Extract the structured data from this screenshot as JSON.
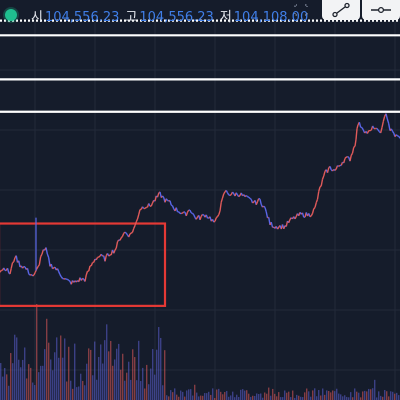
{
  "header": {
    "status_color": "#1fbf8f",
    "ohlc": [
      {
        "label": "시",
        "value": "104,556.23"
      },
      {
        "label": "고",
        "value": "104,556.23"
      },
      {
        "label": "저",
        "value": "104,108.00"
      }
    ]
  },
  "toolbar": {
    "tools": [
      {
        "name": "crosshair-icon",
        "active": false
      },
      {
        "name": "trend-line-icon",
        "active": true
      },
      {
        "name": "horizontal-line-icon",
        "active": true
      }
    ]
  },
  "chart_data": {
    "type": "line",
    "title": "",
    "xlabel": "",
    "ylabel": "",
    "grid": true,
    "price_series": [
      {
        "x": 0,
        "y": 0.12
      },
      {
        "x": 5,
        "y": 0.13
      },
      {
        "x": 10,
        "y": 0.11
      },
      {
        "x": 15,
        "y": 0.17
      },
      {
        "x": 20,
        "y": 0.14
      },
      {
        "x": 25,
        "y": 0.13
      },
      {
        "x": 30,
        "y": 0.11
      },
      {
        "x": 34,
        "y": 0.1
      },
      {
        "x": 38,
        "y": 0.13
      },
      {
        "x": 42,
        "y": 0.18
      },
      {
        "x": 46,
        "y": 0.19
      },
      {
        "x": 50,
        "y": 0.14
      },
      {
        "x": 55,
        "y": 0.13
      },
      {
        "x": 60,
        "y": 0.11
      },
      {
        "x": 65,
        "y": 0.09
      },
      {
        "x": 70,
        "y": 0.08
      },
      {
        "x": 75,
        "y": 0.08
      },
      {
        "x": 80,
        "y": 0.09
      },
      {
        "x": 85,
        "y": 0.09
      },
      {
        "x": 90,
        "y": 0.13
      },
      {
        "x": 95,
        "y": 0.16
      },
      {
        "x": 100,
        "y": 0.17
      },
      {
        "x": 105,
        "y": 0.16
      },
      {
        "x": 110,
        "y": 0.18
      },
      {
        "x": 115,
        "y": 0.19
      },
      {
        "x": 120,
        "y": 0.23
      },
      {
        "x": 125,
        "y": 0.25
      },
      {
        "x": 130,
        "y": 0.24
      },
      {
        "x": 135,
        "y": 0.27
      },
      {
        "x": 140,
        "y": 0.33
      },
      {
        "x": 145,
        "y": 0.34
      },
      {
        "x": 150,
        "y": 0.34
      },
      {
        "x": 155,
        "y": 0.36
      },
      {
        "x": 160,
        "y": 0.38
      },
      {
        "x": 165,
        "y": 0.36
      },
      {
        "x": 170,
        "y": 0.35
      },
      {
        "x": 175,
        "y": 0.33
      },
      {
        "x": 180,
        "y": 0.32
      },
      {
        "x": 185,
        "y": 0.31
      },
      {
        "x": 190,
        "y": 0.33
      },
      {
        "x": 195,
        "y": 0.3
      },
      {
        "x": 200,
        "y": 0.3
      },
      {
        "x": 205,
        "y": 0.31
      },
      {
        "x": 210,
        "y": 0.3
      },
      {
        "x": 215,
        "y": 0.28
      },
      {
        "x": 220,
        "y": 0.33
      },
      {
        "x": 225,
        "y": 0.39
      },
      {
        "x": 230,
        "y": 0.38
      },
      {
        "x": 235,
        "y": 0.38
      },
      {
        "x": 240,
        "y": 0.38
      },
      {
        "x": 245,
        "y": 0.37
      },
      {
        "x": 250,
        "y": 0.36
      },
      {
        "x": 255,
        "y": 0.35
      },
      {
        "x": 260,
        "y": 0.36
      },
      {
        "x": 265,
        "y": 0.33
      },
      {
        "x": 270,
        "y": 0.28
      },
      {
        "x": 275,
        "y": 0.27
      },
      {
        "x": 280,
        "y": 0.27
      },
      {
        "x": 285,
        "y": 0.27
      },
      {
        "x": 290,
        "y": 0.29
      },
      {
        "x": 295,
        "y": 0.3
      },
      {
        "x": 300,
        "y": 0.31
      },
      {
        "x": 305,
        "y": 0.31
      },
      {
        "x": 310,
        "y": 0.31
      },
      {
        "x": 315,
        "y": 0.33
      },
      {
        "x": 320,
        "y": 0.4
      },
      {
        "x": 325,
        "y": 0.45
      },
      {
        "x": 330,
        "y": 0.47
      },
      {
        "x": 335,
        "y": 0.46
      },
      {
        "x": 340,
        "y": 0.48
      },
      {
        "x": 345,
        "y": 0.5
      },
      {
        "x": 350,
        "y": 0.5
      },
      {
        "x": 355,
        "y": 0.55
      },
      {
        "x": 358,
        "y": 0.62
      },
      {
        "x": 362,
        "y": 0.61
      },
      {
        "x": 366,
        "y": 0.59
      },
      {
        "x": 370,
        "y": 0.59
      },
      {
        "x": 374,
        "y": 0.61
      },
      {
        "x": 378,
        "y": 0.59
      },
      {
        "x": 382,
        "y": 0.6
      },
      {
        "x": 386,
        "y": 0.66
      },
      {
        "x": 390,
        "y": 0.6
      },
      {
        "x": 395,
        "y": 0.58
      },
      {
        "x": 400,
        "y": 0.57
      }
    ],
    "horizontal_levels": [
      {
        "y": 0.97,
        "style": "dotted"
      },
      {
        "y": 0.92,
        "style": "solid"
      },
      {
        "y": 0.77,
        "style": "solid"
      },
      {
        "y": 0.66,
        "style": "solid"
      }
    ],
    "highlight_region": {
      "x_start": 0,
      "x_end": 165,
      "y_bottom": 0.0,
      "y_top": 0.28,
      "color": "#e53935"
    },
    "x_range": [
      0,
      400
    ],
    "y_range": [
      -0.32,
      1.04
    ],
    "colors": {
      "background": "#151c2b",
      "grid": "#222a3a",
      "price_up": "#e05a5a",
      "price_down": "#5a66e8",
      "levels": "#ffffff",
      "volume": "#5b5fd0"
    }
  }
}
